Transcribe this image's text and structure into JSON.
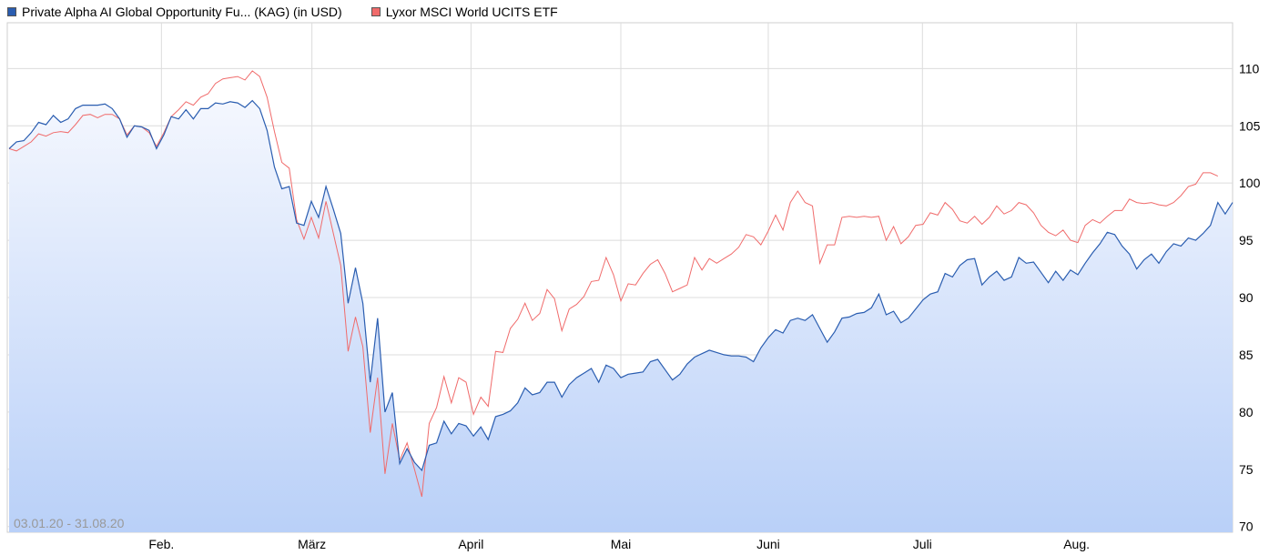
{
  "legend": {
    "series1": "Private Alpha AI Global Opportunity Fu... (KAG) (in USD)",
    "series2": "Lyxor MSCI World UCITS ETF"
  },
  "colors": {
    "series1": "#2a5db0",
    "series2": "#f06b6b",
    "fill_top": "#f4f7fe",
    "fill_bottom": "#b9d0f8",
    "grid": "#dcdcdc"
  },
  "chart_data": {
    "type": "line",
    "date_range": "03.01.20 - 31.08.20",
    "ylim": [
      69.5,
      114
    ],
    "yticks": [
      110,
      105,
      100,
      95,
      90,
      85,
      80,
      75,
      70
    ],
    "xticks": [
      "Feb.",
      "März",
      "April",
      "Mai",
      "Juni",
      "Juli",
      "Aug."
    ],
    "series": [
      {
        "name": "Private Alpha AI Global Opportunity Fu... (KAG) (in USD)",
        "values": [
          103.0,
          103.6,
          103.7,
          104.4,
          105.3,
          105.1,
          105.9,
          105.3,
          105.6,
          106.5,
          106.8,
          106.8,
          106.8,
          106.9,
          106.5,
          105.6,
          104.0,
          105.0,
          104.9,
          104.6,
          103.0,
          104.2,
          105.8,
          105.6,
          106.4,
          105.6,
          106.5,
          106.5,
          107.0,
          106.9,
          107.1,
          107.0,
          106.6,
          107.2,
          106.5,
          104.6,
          101.4,
          99.5,
          99.7,
          96.5,
          96.3,
          98.4,
          97.0,
          99.7,
          97.7,
          95.6,
          89.5,
          92.6,
          89.5,
          82.6,
          88.2,
          80.0,
          81.7,
          75.5,
          76.8,
          75.6,
          74.9,
          77.1,
          77.3,
          79.2,
          78.1,
          79.0,
          78.8,
          77.9,
          78.7,
          77.6,
          79.6,
          79.8,
          80.1,
          80.8,
          82.1,
          81.5,
          81.7,
          82.6,
          82.6,
          81.3,
          82.4,
          83.0,
          83.4,
          83.8,
          82.6,
          84.1,
          83.8,
          83.0,
          83.3,
          83.4,
          83.5,
          84.4,
          84.6,
          83.7,
          82.8,
          83.3,
          84.2,
          84.8,
          85.1,
          85.4,
          85.2,
          85.0,
          84.9,
          84.9,
          84.8,
          84.4,
          85.6,
          86.5,
          87.2,
          86.9,
          88.0,
          88.2,
          88.0,
          88.5,
          87.3,
          86.1,
          87.0,
          88.2,
          88.3,
          88.6,
          88.7,
          89.1,
          90.3,
          88.5,
          88.8,
          87.8,
          88.2,
          89.0,
          89.8,
          90.3,
          90.5,
          92.1,
          91.8,
          92.8,
          93.3,
          93.4,
          91.1,
          91.8,
          92.3,
          91.5,
          91.8,
          93.5,
          93.0,
          93.1,
          92.2,
          91.3,
          92.3,
          91.5,
          92.4,
          92.0,
          93.0,
          93.9,
          94.7,
          95.7,
          95.5,
          94.5,
          93.8,
          92.5,
          93.3,
          93.8,
          93.0,
          94.0,
          94.7,
          94.5,
          95.2,
          95.0,
          95.6,
          96.3,
          98.3,
          97.3,
          98.3
        ]
      },
      {
        "name": "Lyxor MSCI World UCITS ETF",
        "values": [
          103.0,
          102.8,
          103.2,
          103.6,
          104.3,
          104.1,
          104.4,
          104.5,
          104.4,
          105.1,
          105.9,
          106.0,
          105.7,
          106.0,
          106.0,
          105.6,
          104.2,
          105.0,
          104.9,
          104.4,
          103.2,
          104.4,
          105.8,
          106.4,
          107.1,
          106.8,
          107.5,
          107.8,
          108.7,
          109.1,
          109.2,
          109.3,
          109.0,
          109.8,
          109.3,
          107.5,
          104.5,
          101.8,
          101.3,
          96.8,
          95.1,
          97.0,
          95.2,
          98.4,
          95.6,
          92.8,
          85.3,
          88.3,
          85.7,
          78.2,
          83.0,
          74.6,
          79.0,
          75.8,
          77.3,
          75.0,
          72.6,
          79.0,
          80.4,
          83.1,
          80.8,
          83.0,
          82.6,
          79.8,
          81.3,
          80.5,
          85.3,
          85.2,
          87.3,
          88.1,
          89.5,
          88.0,
          88.6,
          90.7,
          89.9,
          87.1,
          89.0,
          89.4,
          90.1,
          91.4,
          91.5,
          93.5,
          92.0,
          89.7,
          91.2,
          91.1,
          92.1,
          92.9,
          93.3,
          92.1,
          90.5,
          90.8,
          91.1,
          93.5,
          92.4,
          93.4,
          93.0,
          93.4,
          93.8,
          94.4,
          95.5,
          95.3,
          94.6,
          95.8,
          97.2,
          95.9,
          98.3,
          99.3,
          98.3,
          98.0,
          93.0,
          94.6,
          94.6,
          97.0,
          97.1,
          97.0,
          97.1,
          97.0,
          97.1,
          95.0,
          96.2,
          94.7,
          95.3,
          96.3,
          96.4,
          97.4,
          97.2,
          98.3,
          97.7,
          96.7,
          96.5,
          97.1,
          96.4,
          97.0,
          98.0,
          97.3,
          97.6,
          98.3,
          98.1,
          97.4,
          96.3,
          95.7,
          95.4,
          95.9,
          95.0,
          94.8,
          96.3,
          96.8,
          96.5,
          97.1,
          97.6,
          97.6,
          98.6,
          98.3,
          98.2,
          98.3,
          98.1,
          98.0,
          98.3,
          98.9,
          99.7,
          99.9,
          100.9,
          100.9,
          100.6
        ]
      }
    ]
  }
}
